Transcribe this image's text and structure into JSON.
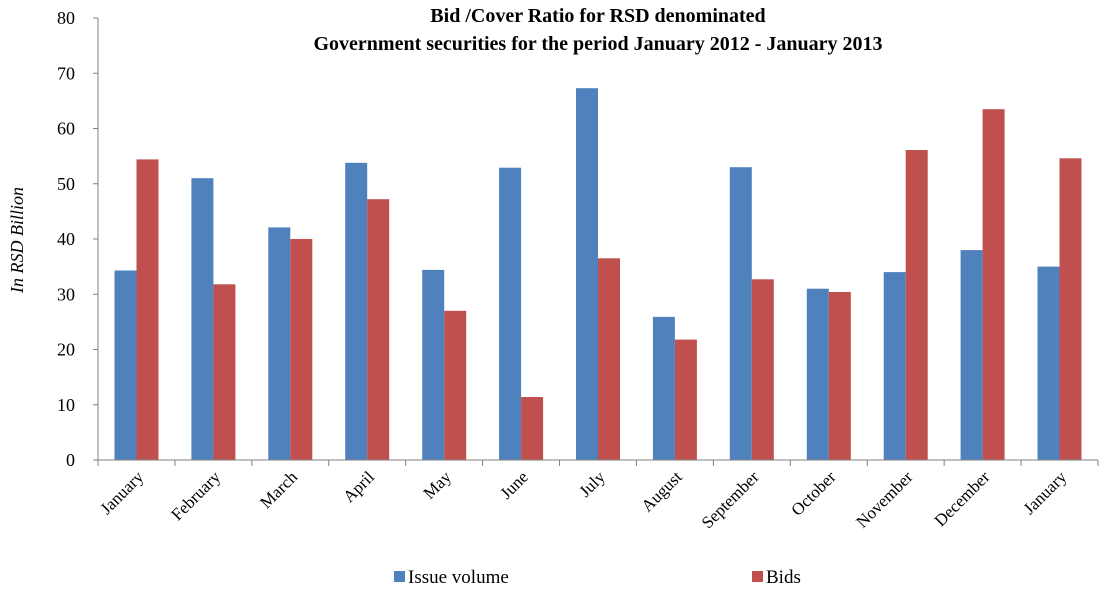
{
  "chart_data": {
    "type": "bar",
    "title": "Bid /Cover Ratio for RSD denominated",
    "subtitle": "Government securities for the period January 2012 - January 2013",
    "xlabel": "",
    "ylabel": "In RSD Billion",
    "ylim": [
      0,
      80
    ],
    "yticks": [
      0,
      10,
      20,
      30,
      40,
      50,
      60,
      70,
      80
    ],
    "grid": false,
    "legend_position": "bottom",
    "categories": [
      "January",
      "February",
      "March",
      "April",
      "May",
      "June",
      "July",
      "August",
      "September",
      "October",
      "November",
      "December",
      "January"
    ],
    "series": [
      {
        "name": "Issue volume",
        "color": "#4F81BD",
        "values": [
          34.3,
          51.0,
          42.1,
          53.8,
          34.4,
          52.9,
          67.3,
          25.9,
          53.0,
          31.0,
          34.0,
          38.0,
          35.0
        ]
      },
      {
        "name": "Bids",
        "color": "#C0504D",
        "values": [
          54.4,
          31.8,
          40.0,
          47.2,
          27.0,
          11.4,
          36.5,
          21.8,
          32.7,
          30.4,
          56.1,
          63.5,
          54.6
        ]
      }
    ]
  }
}
